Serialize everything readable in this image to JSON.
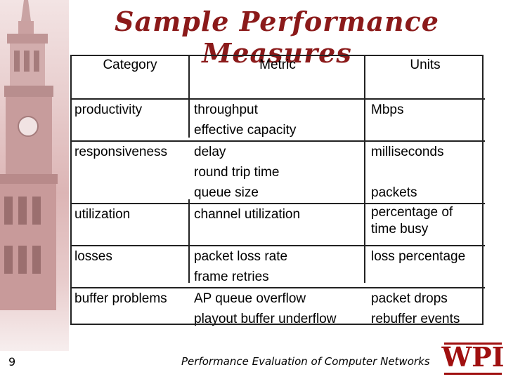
{
  "slide": {
    "title": "Sample Performance Measures",
    "page_number": "9",
    "footer": "Performance Evaluation of Computer Networks",
    "logo": "WPI"
  },
  "table": {
    "headers": [
      "Category",
      "Metric",
      "Units"
    ],
    "rows": [
      {
        "category": "productivity",
        "metrics": [
          "throughput",
          "effective capacity"
        ],
        "units": [
          "Mbps",
          ""
        ]
      },
      {
        "category": "responsiveness",
        "metrics": [
          "delay",
          "round trip time",
          "queue size"
        ],
        "units": [
          "milliseconds",
          "",
          "packets"
        ]
      },
      {
        "category": "utilization",
        "metrics": [
          "channel utilization"
        ],
        "units": [
          "percentage of",
          "time busy"
        ]
      },
      {
        "category": "losses",
        "metrics": [
          "packet loss rate",
          "frame retries"
        ],
        "units": [
          "loss percentage",
          ""
        ]
      },
      {
        "category": "buffer problems",
        "metrics": [
          "AP queue overflow",
          "playout buffer underflow"
        ],
        "units": [
          "packet drops",
          "rebuffer events"
        ]
      }
    ]
  },
  "colors": {
    "title": "#8b1a1a",
    "logo": "#a01010"
  }
}
